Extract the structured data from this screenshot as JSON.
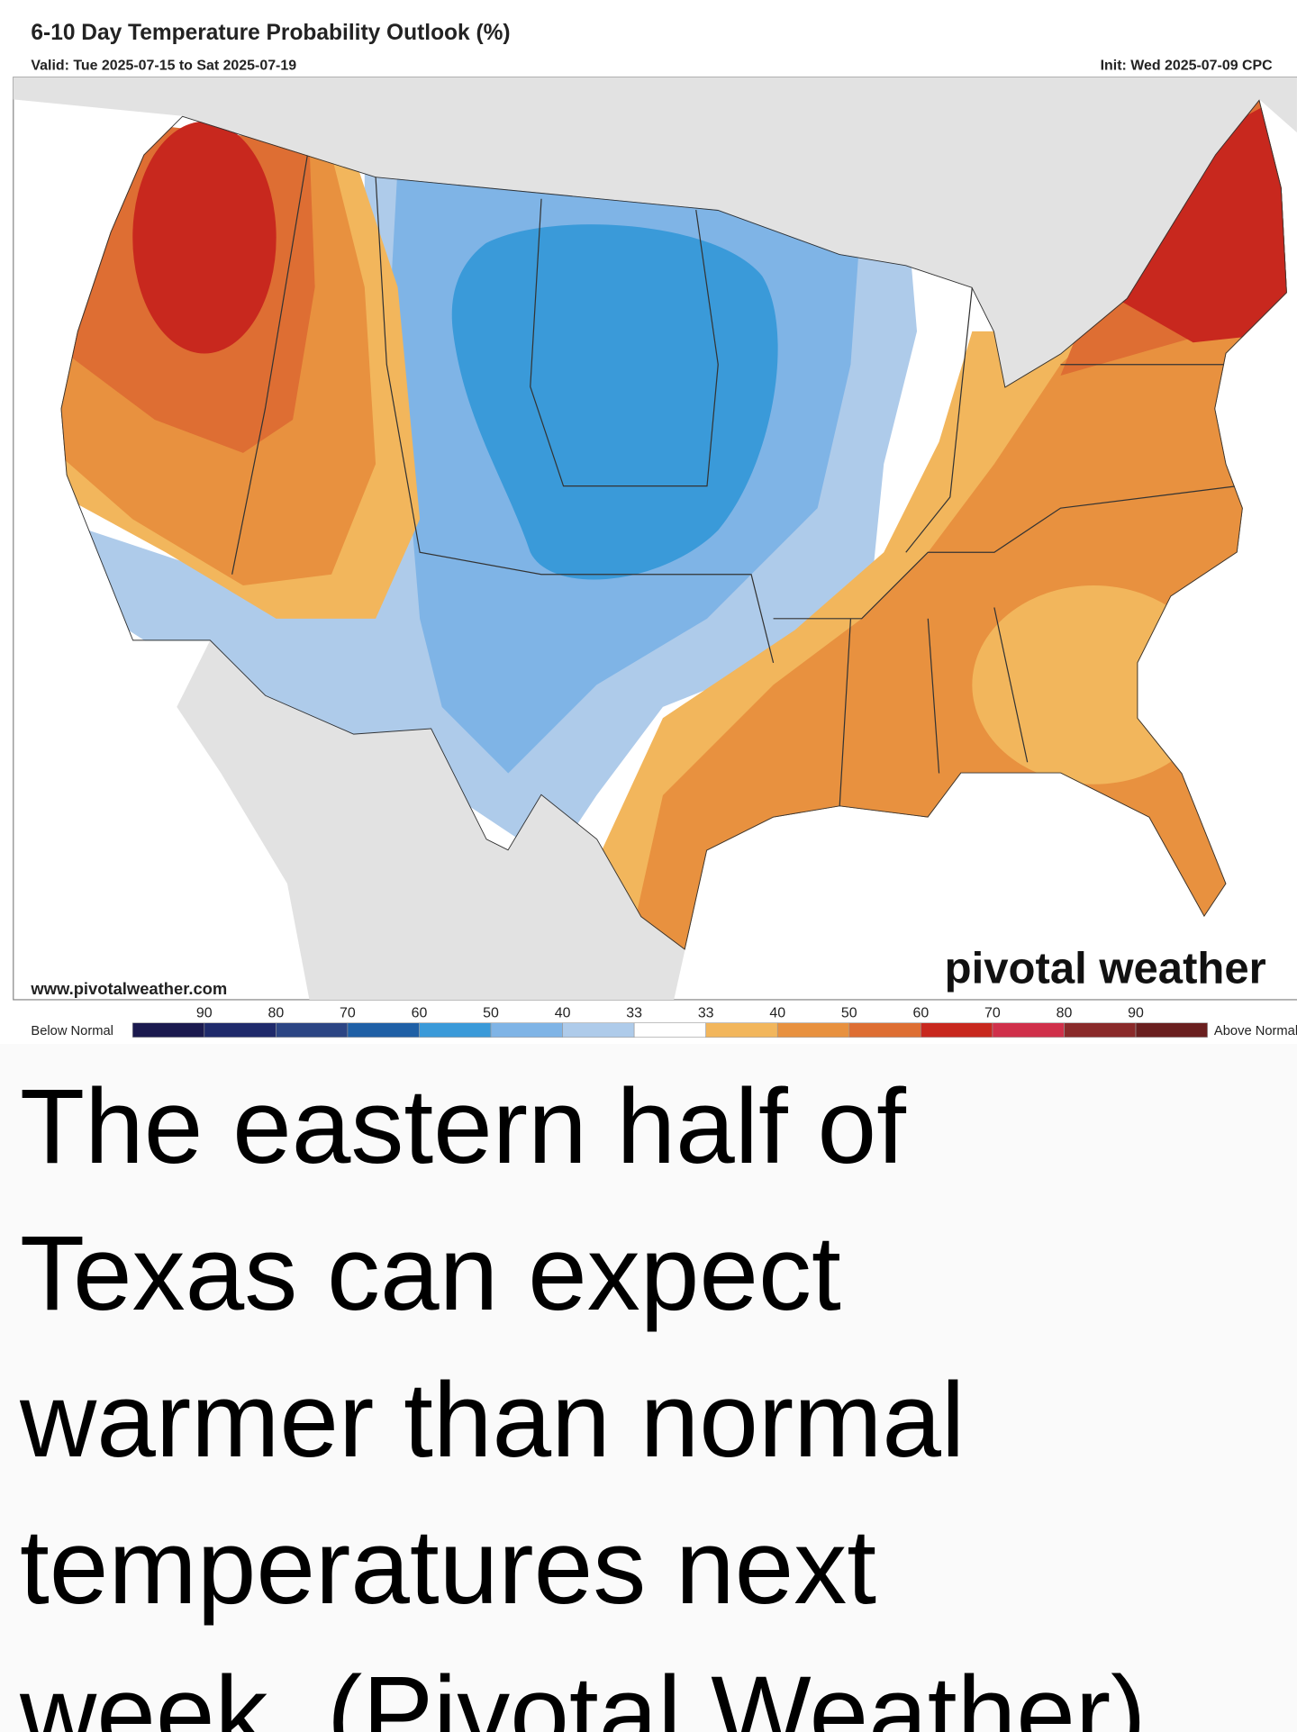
{
  "header": {
    "title": "6-10 Day Temperature Probability Outlook (%)",
    "valid": "Valid: Tue 2025-07-15 to Sat 2025-07-19",
    "init": "Init: Wed 2025-07-09 CPC"
  },
  "map": {
    "website": "www.pivotalweather.com",
    "logo": "pivotal weather"
  },
  "legend": {
    "below_label": "Below Normal",
    "above_label": "Above Normal",
    "below_ticks": [
      90,
      80,
      70,
      60,
      50,
      40,
      33
    ],
    "above_ticks": [
      33,
      40,
      50,
      60,
      70,
      80,
      90
    ],
    "colors": [
      "#1b1a4f",
      "#1f2a6b",
      "#2c4584",
      "#1f60a6",
      "#3a9ad9",
      "#7fb4e6",
      "#aecbea",
      "#ffffff",
      "#f2b65c",
      "#e8913f",
      "#de6e33",
      "#c8281e",
      "#d0304a",
      "#8a2a2a",
      "#6a1f1f"
    ]
  },
  "caption": {
    "lines": [
      "The eastern half of",
      "Texas can expect",
      "warmer than normal",
      "temperatures next",
      "week. (Pivotal Weather)"
    ]
  }
}
